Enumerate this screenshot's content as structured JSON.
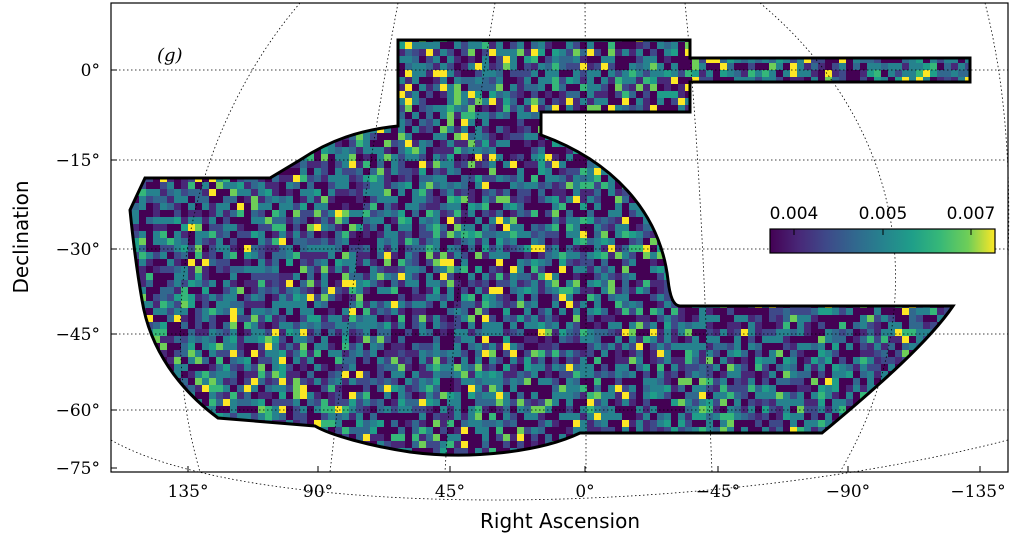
{
  "chart_data": {
    "type": "heatmap",
    "projection": "sky map (curved RA/Dec graticule)",
    "panel_label": "(g)",
    "xlabel": "Right Ascension",
    "ylabel": "Declination",
    "x_ticks": [
      "135°",
      "90°",
      "45°",
      "0°",
      "−45°",
      "−90°",
      "−135°"
    ],
    "y_ticks": [
      "0°",
      "−15°",
      "−30°",
      "−45°",
      "−60°",
      "−75°"
    ],
    "y_tick_values": [
      0,
      -15,
      -30,
      -45,
      -60,
      -75
    ],
    "colorbar": {
      "colormap": "viridis",
      "ticks": [
        "0.004",
        "0.005",
        "0.007"
      ],
      "range": [
        0.0035,
        0.0075
      ],
      "placement": "right, inside plot"
    },
    "footprint_outline": "black polygon enclosing survey region",
    "grid": "dotted graticule"
  }
}
